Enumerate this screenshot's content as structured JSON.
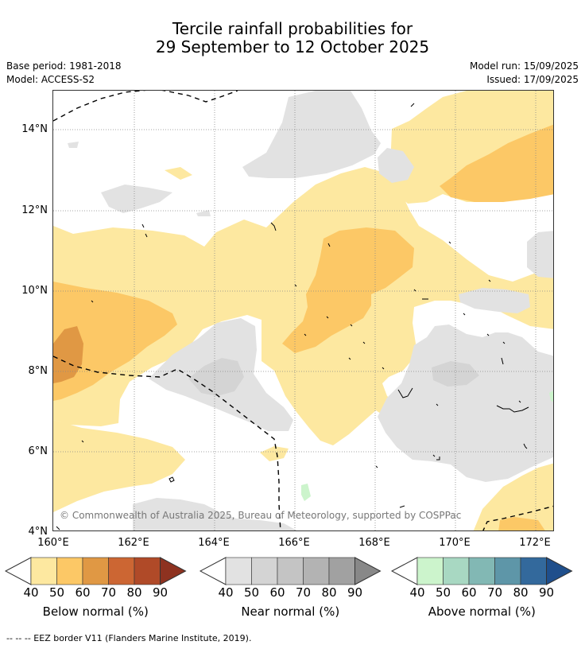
{
  "title_line1": "Tercile rainfall probabilities for",
  "title_line2": "29 September to 12 October 2025",
  "base_period": "Base period: 1981-2018",
  "model": "Model: ACCESS-S2",
  "model_run": "Model run: 15/09/2025",
  "issued": "Issued: 17/09/2025",
  "lat_ticks": [
    "14°N",
    "12°N",
    "10°N",
    "8°N",
    "6°N",
    "4°N"
  ],
  "lon_ticks": [
    "160°E",
    "162°E",
    "164°E",
    "166°E",
    "168°E",
    "170°E",
    "172°E"
  ],
  "copyright": "© Commonwealth of Australia 2025, Bureau of Meteorology, supported by COSPPac",
  "colorbars": [
    {
      "label": "Below normal (%)",
      "ticks": [
        "40",
        "50",
        "60",
        "70",
        "80",
        "90"
      ],
      "colors": [
        "#fde8a0",
        "#fcc866",
        "#e09844",
        "#cc6633",
        "#b04a28",
        "#8e3220"
      ]
    },
    {
      "label": "Near normal (%)",
      "ticks": [
        "40",
        "50",
        "60",
        "70",
        "80",
        "90"
      ],
      "colors": [
        "#e2e2e2",
        "#d4d4d4",
        "#c4c4c4",
        "#b3b3b3",
        "#a1a1a1",
        "#888888"
      ]
    },
    {
      "label": "Above normal (%)",
      "ticks": [
        "40",
        "50",
        "60",
        "70",
        "80",
        "90"
      ],
      "colors": [
        "#ccf4cc",
        "#a8d8c2",
        "#82b8b4",
        "#5e96a8",
        "#33699c",
        "#1f4f8c"
      ]
    }
  ],
  "footnote": "--  --  -- EEZ border V11 (Flanders Marine Institute, 2019)."
}
